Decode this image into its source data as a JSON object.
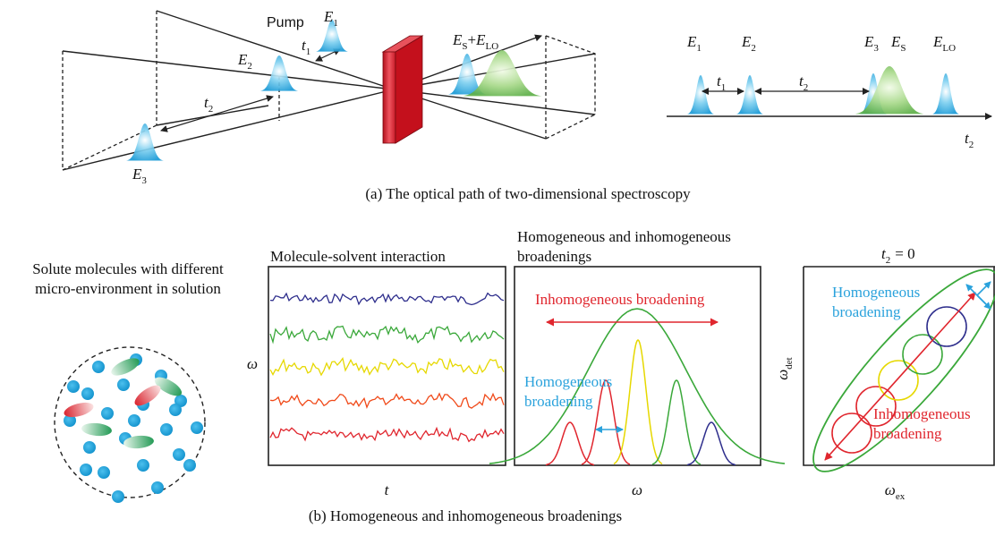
{
  "panel_a": {
    "caption": "(a) The optical path of two-dimensional spectroscopy",
    "optical_path": {
      "pump": "Pump",
      "e1": {
        "symbol": "E",
        "sub": "1"
      },
      "e2": {
        "symbol": "E",
        "sub": "2"
      },
      "e3": {
        "symbol": "E",
        "sub": "3"
      },
      "t1": {
        "symbol": "t",
        "sub": "1"
      },
      "t2": {
        "symbol": "t",
        "sub": "2"
      },
      "signal": {
        "symbol": "E",
        "sub": "S",
        "plus": "+",
        "symbol2": "E",
        "sub2": "LO"
      }
    },
    "timeline": {
      "e1": {
        "symbol": "E",
        "sub": "1"
      },
      "t1": {
        "symbol": "t",
        "sub": "1"
      },
      "e2": {
        "symbol": "E",
        "sub": "2"
      },
      "t2": {
        "symbol": "t",
        "sub": "2"
      },
      "e3": {
        "symbol": "E",
        "sub": "3"
      },
      "es": {
        "symbol": "E",
        "sub": "S"
      },
      "elo": {
        "symbol": "E",
        "sub": "LO"
      },
      "axis_label": {
        "symbol": "t",
        "sub": "2"
      }
    }
  },
  "panel_b": {
    "caption": "(b) Homogeneous and inhomogeneous broadenings",
    "solute": {
      "title_lines": [
        "Solute molecules with different",
        "micro-environment in solution"
      ]
    },
    "interaction": {
      "title": "Molecule-solvent interaction",
      "y_label": "ω",
      "x_label": "t"
    },
    "broadening": {
      "title_lines": [
        "Homogeneous and inhomogeneous",
        "broadenings"
      ],
      "inhomogeneous": "Inhomogeneous broadening",
      "homogeneous_lines": [
        "Homogeneous",
        "broadening"
      ],
      "x_label": "ω"
    },
    "two_d": {
      "title": {
        "symbol": "t",
        "sub": "2",
        "rest": "= 0"
      },
      "homogeneous_lines": [
        "Homogeneous",
        "broadening"
      ],
      "inhomogeneous_lines": [
        "Inhomogeneous",
        "broadening"
      ],
      "y_label": {
        "symbol": "ω",
        "sub": "det"
      },
      "x_label": {
        "symbol": "ω",
        "sub": "ex"
      }
    }
  }
}
